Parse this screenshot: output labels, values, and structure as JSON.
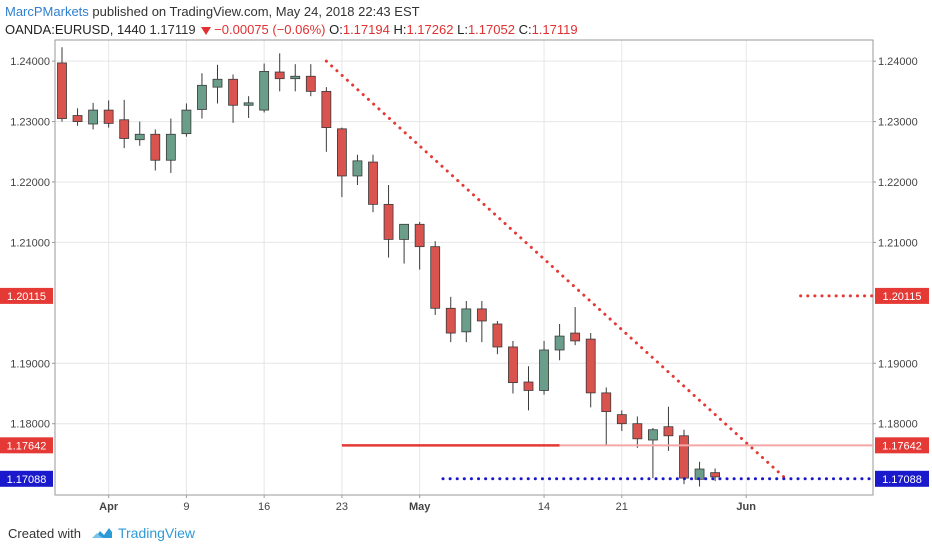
{
  "header": {
    "author": "MarcPMarkets",
    "published_text": "published on TradingView.com, May 24, 2018 22:43 EST",
    "symbol": "OANDA:EURUSD, 1440",
    "last_price": "1.17119",
    "change": "−0.00075 (−0.06%)",
    "open_label": "O:",
    "open": "1.17194",
    "high_label": "H:",
    "high": "1.17262",
    "low_label": "L:",
    "low": "1.17052",
    "close_label": "C:",
    "close": "1.17119"
  },
  "footer": {
    "created_with": "Created with",
    "brand": "TradingView",
    "brand_icon": "tradingview-cloud-icon"
  },
  "colors": {
    "up": "#6a9e8a",
    "down": "#d9534f",
    "red_line": "#e53935",
    "red_line_light": "#f4a7a7",
    "blue_line": "#1a1acc",
    "grid": "#e6e6e6",
    "axis_text": "#444444"
  },
  "chart_data": {
    "type": "candlestick",
    "interval": "1D",
    "ylim": [
      1.1682,
      1.2435
    ],
    "y_ticks": [
      1.24,
      1.23,
      1.22,
      1.21,
      1.19,
      1.18
    ],
    "y_tick_labels": [
      "1.24000",
      "1.23000",
      "1.22000",
      "1.21000",
      "1.19000",
      "1.18000"
    ],
    "x_ticks": [
      {
        "label": "Apr",
        "index": 3
      },
      {
        "label": "9",
        "index": 8
      },
      {
        "label": "16",
        "index": 13
      },
      {
        "label": "23",
        "index": 18
      },
      {
        "label": "May",
        "index": 23
      },
      {
        "label": "14",
        "index": 31
      },
      {
        "label": "21",
        "index": 36
      },
      {
        "label": "Jun",
        "index": 44
      }
    ],
    "candles": [
      {
        "o": 1.2397,
        "h": 1.2423,
        "l": 1.23,
        "c": 1.2305
      },
      {
        "o": 1.231,
        "h": 1.2322,
        "l": 1.2293,
        "c": 1.23
      },
      {
        "o": 1.2296,
        "h": 1.2331,
        "l": 1.2287,
        "c": 1.2319
      },
      {
        "o": 1.2319,
        "h": 1.2335,
        "l": 1.229,
        "c": 1.2297
      },
      {
        "o": 1.2303,
        "h": 1.2336,
        "l": 1.2256,
        "c": 1.2272
      },
      {
        "o": 1.227,
        "h": 1.23,
        "l": 1.226,
        "c": 1.2279
      },
      {
        "o": 1.2279,
        "h": 1.2287,
        "l": 1.2219,
        "c": 1.2236
      },
      {
        "o": 1.2236,
        "h": 1.2305,
        "l": 1.2215,
        "c": 1.2279
      },
      {
        "o": 1.228,
        "h": 1.233,
        "l": 1.2275,
        "c": 1.2319
      },
      {
        "o": 1.232,
        "h": 1.238,
        "l": 1.2305,
        "c": 1.236
      },
      {
        "o": 1.2357,
        "h": 1.2394,
        "l": 1.233,
        "c": 1.237
      },
      {
        "o": 1.237,
        "h": 1.2378,
        "l": 1.2298,
        "c": 1.2327
      },
      {
        "o": 1.2327,
        "h": 1.2342,
        "l": 1.2306,
        "c": 1.2331
      },
      {
        "o": 1.2319,
        "h": 1.2396,
        "l": 1.2315,
        "c": 1.2383
      },
      {
        "o": 1.2382,
        "h": 1.2413,
        "l": 1.235,
        "c": 1.2371
      },
      {
        "o": 1.2371,
        "h": 1.2395,
        "l": 1.235,
        "c": 1.2375
      },
      {
        "o": 1.2375,
        "h": 1.2395,
        "l": 1.2342,
        "c": 1.235
      },
      {
        "o": 1.235,
        "h": 1.2357,
        "l": 1.225,
        "c": 1.229
      },
      {
        "o": 1.2288,
        "h": 1.229,
        "l": 1.2175,
        "c": 1.221
      },
      {
        "o": 1.221,
        "h": 1.2245,
        "l": 1.2195,
        "c": 1.2235
      },
      {
        "o": 1.2233,
        "h": 1.2245,
        "l": 1.215,
        "c": 1.2163
      },
      {
        "o": 1.2163,
        "h": 1.2195,
        "l": 1.2075,
        "c": 1.2105
      },
      {
        "o": 1.2105,
        "h": 1.213,
        "l": 1.2065,
        "c": 1.213
      },
      {
        "o": 1.213,
        "h": 1.2134,
        "l": 1.2055,
        "c": 1.2093
      },
      {
        "o": 1.2093,
        "h": 1.2102,
        "l": 1.198,
        "c": 1.1991
      },
      {
        "o": 1.1991,
        "h": 1.201,
        "l": 1.1935,
        "c": 1.195
      },
      {
        "o": 1.1952,
        "h": 1.2003,
        "l": 1.1935,
        "c": 1.199
      },
      {
        "o": 1.199,
        "h": 1.2003,
        "l": 1.1935,
        "c": 1.197
      },
      {
        "o": 1.1965,
        "h": 1.197,
        "l": 1.1915,
        "c": 1.1927
      },
      {
        "o": 1.1927,
        "h": 1.1937,
        "l": 1.185,
        "c": 1.1868
      },
      {
        "o": 1.1869,
        "h": 1.1895,
        "l": 1.1822,
        "c": 1.1855
      },
      {
        "o": 1.1855,
        "h": 1.1937,
        "l": 1.1848,
        "c": 1.1922
      },
      {
        "o": 1.1922,
        "h": 1.1965,
        "l": 1.1905,
        "c": 1.1945
      },
      {
        "o": 1.195,
        "h": 1.1993,
        "l": 1.193,
        "c": 1.1937
      },
      {
        "o": 1.194,
        "h": 1.195,
        "l": 1.1827,
        "c": 1.1851
      },
      {
        "o": 1.1851,
        "h": 1.186,
        "l": 1.1765,
        "c": 1.182
      },
      {
        "o": 1.1815,
        "h": 1.1822,
        "l": 1.1788,
        "c": 1.18
      },
      {
        "o": 1.18,
        "h": 1.1812,
        "l": 1.176,
        "c": 1.1775
      },
      {
        "o": 1.1773,
        "h": 1.1793,
        "l": 1.171,
        "c": 1.179
      },
      {
        "o": 1.1795,
        "h": 1.1828,
        "l": 1.1755,
        "c": 1.178
      },
      {
        "o": 1.178,
        "h": 1.179,
        "l": 1.17,
        "c": 1.171
      },
      {
        "o": 1.1708,
        "h": 1.1737,
        "l": 1.1696,
        "c": 1.1725
      },
      {
        "o": 1.1719,
        "h": 1.1726,
        "l": 1.1705,
        "c": 1.1712
      }
    ],
    "annotations": {
      "trendline": {
        "from": {
          "index": 17,
          "price": 1.24
        },
        "to": {
          "index": 46.5,
          "price": 1.171
        },
        "style": "dotted",
        "color": "#e53935"
      },
      "level_120115": {
        "price": 1.20115,
        "label": "1.20115",
        "start_index": 47.5,
        "style": "dotted",
        "color": "#e53935"
      },
      "level_117642": {
        "price": 1.17642,
        "label": "1.17642",
        "start_index": 18,
        "solid_until_index": 32,
        "style": "solid",
        "color": "#e53935"
      },
      "level_117088": {
        "price": 1.17088,
        "label": "1.17088",
        "start_index": 24.5,
        "style": "dotted",
        "color": "#1a1acc"
      }
    }
  }
}
